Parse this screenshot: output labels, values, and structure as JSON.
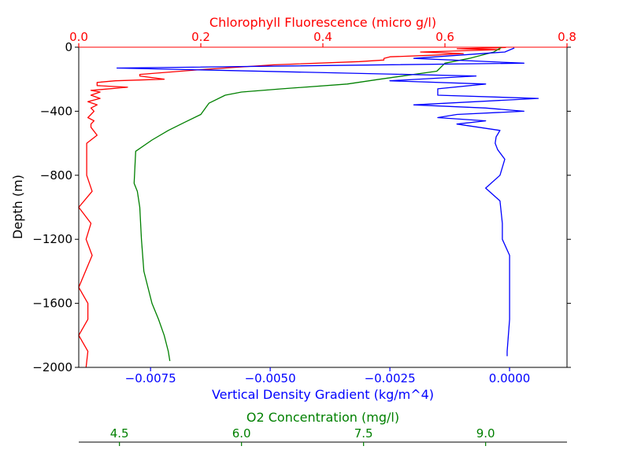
{
  "chart_data": {
    "type": "line",
    "y_axis": {
      "label": "Depth (m)",
      "lim": [
        -2000,
        0
      ],
      "ticks": [
        0,
        -400,
        -800,
        -1200,
        -1600,
        -2000
      ],
      "tick_labels": [
        "0",
        "−400",
        "−800",
        "−1200",
        "−1600",
        "−2000"
      ]
    },
    "x_axes": {
      "chlorophyll": {
        "label": "Chlorophyll Fluorescence (micro g/l)",
        "color": "#ff0000",
        "position": "top",
        "lim": [
          0,
          0.8
        ],
        "ticks": [
          0,
          0.2,
          0.4,
          0.6,
          0.8
        ],
        "tick_labels": [
          "0.0",
          "0.2",
          "0.4",
          "0.6",
          "0.8"
        ]
      },
      "density": {
        "label": "Vertical Density Gradient (kg/m^4)",
        "color": "#0000ff",
        "position": "bottom",
        "lim": [
          -0.009,
          0.0012
        ],
        "ticks": [
          -0.0075,
          -0.005,
          -0.0025,
          0
        ],
        "tick_labels": [
          "−0.0075",
          "−0.0050",
          "−0.0025",
          "0.0000"
        ]
      },
      "oxygen": {
        "label": "O2 Concentration (mg/l)",
        "color": "#008000",
        "position": "bottom (offset)",
        "lim": [
          4.0,
          10.0
        ],
        "ticks": [
          4.5,
          6.0,
          7.5,
          9.0
        ],
        "tick_labels": [
          "4.5",
          "6.0",
          "7.5",
          "9.0"
        ]
      }
    },
    "series": [
      {
        "axis": "chlorophyll",
        "color": "#ff0000",
        "points": [
          [
            0.7,
            -2
          ],
          [
            0.62,
            -10
          ],
          [
            0.69,
            -15
          ],
          [
            0.56,
            -30
          ],
          [
            0.63,
            -40
          ],
          [
            0.58,
            -50
          ],
          [
            0.51,
            -60
          ],
          [
            0.5,
            -70
          ],
          [
            0.5,
            -80
          ],
          [
            0.46,
            -90
          ],
          [
            0.32,
            -110
          ],
          [
            0.2,
            -140
          ],
          [
            0.1,
            -170
          ],
          [
            0.1,
            -180
          ],
          [
            0.14,
            -200
          ],
          [
            0.06,
            -210
          ],
          [
            0.03,
            -220
          ],
          [
            0.03,
            -240
          ],
          [
            0.08,
            -250
          ],
          [
            0.02,
            -270
          ],
          [
            0.035,
            -280
          ],
          [
            0.02,
            -300
          ],
          [
            0.035,
            -320
          ],
          [
            0.015,
            -340
          ],
          [
            0.03,
            -360
          ],
          [
            0.02,
            -380
          ],
          [
            0.025,
            -400
          ],
          [
            0.02,
            -420
          ],
          [
            0.015,
            -440
          ],
          [
            0.025,
            -460
          ],
          [
            0.02,
            -480
          ],
          [
            0.02,
            -500
          ],
          [
            0.03,
            -550
          ],
          [
            0.013,
            -600
          ],
          [
            0.013,
            -700
          ],
          [
            0.013,
            -800
          ],
          [
            0.022,
            -900
          ],
          [
            0.0,
            -1000
          ],
          [
            0.02,
            -1100
          ],
          [
            0.012,
            -1200
          ],
          [
            0.022,
            -1300
          ],
          [
            0.0,
            -1500
          ],
          [
            0.015,
            -1600
          ],
          [
            0.015,
            -1700
          ],
          [
            0.0,
            -1800
          ],
          [
            0.015,
            -1900
          ],
          [
            0.012,
            -2000
          ]
        ]
      },
      {
        "axis": "oxygen",
        "color": "#008000",
        "points": [
          [
            9.2,
            0
          ],
          [
            9.1,
            -30
          ],
          [
            8.8,
            -70
          ],
          [
            8.5,
            -100
          ],
          [
            8.4,
            -150
          ],
          [
            7.7,
            -200
          ],
          [
            7.3,
            -230
          ],
          [
            6.5,
            -260
          ],
          [
            6.0,
            -280
          ],
          [
            5.8,
            -300
          ],
          [
            5.6,
            -350
          ],
          [
            5.5,
            -420
          ],
          [
            5.3,
            -470
          ],
          [
            5.1,
            -520
          ],
          [
            4.9,
            -580
          ],
          [
            4.7,
            -650
          ],
          [
            4.69,
            -750
          ],
          [
            4.68,
            -850
          ],
          [
            4.72,
            -900
          ],
          [
            4.75,
            -1000
          ],
          [
            4.77,
            -1200
          ],
          [
            4.8,
            -1400
          ],
          [
            4.9,
            -1600
          ],
          [
            4.98,
            -1700
          ],
          [
            5.05,
            -1800
          ],
          [
            5.1,
            -1900
          ],
          [
            5.12,
            -1960
          ]
        ]
      },
      {
        "axis": "density",
        "color": "#0000ff",
        "points": [
          [
            0.0001,
            -5
          ],
          [
            -0.0001,
            -30
          ],
          [
            -0.002,
            -70
          ],
          [
            0.0003,
            -100
          ],
          [
            -0.0082,
            -130
          ],
          [
            -0.0007,
            -180
          ],
          [
            -0.0025,
            -210
          ],
          [
            -0.0005,
            -230
          ],
          [
            -0.0015,
            -260
          ],
          [
            -0.0015,
            -300
          ],
          [
            0.0006,
            -320
          ],
          [
            -0.002,
            -360
          ],
          [
            -0.0005,
            -380
          ],
          [
            0.0003,
            -400
          ],
          [
            -0.0011,
            -420
          ],
          [
            -0.0015,
            -440
          ],
          [
            -0.0005,
            -460
          ],
          [
            -0.0011,
            -480
          ],
          [
            -0.0002,
            -520
          ],
          [
            -0.00028,
            -560
          ],
          [
            -0.0003,
            -600
          ],
          [
            -0.00025,
            -640
          ],
          [
            -0.0001,
            -700
          ],
          [
            -0.0002,
            -800
          ],
          [
            -0.0005,
            -880
          ],
          [
            -0.0002,
            -960
          ],
          [
            -0.00015,
            -1100
          ],
          [
            -0.00015,
            -1200
          ],
          [
            0.0,
            -1300
          ],
          [
            0.0,
            -1500
          ],
          [
            0.0,
            -1700
          ],
          [
            -5e-05,
            -1900
          ],
          [
            -5e-05,
            -1930
          ]
        ]
      }
    ],
    "grid": false
  }
}
